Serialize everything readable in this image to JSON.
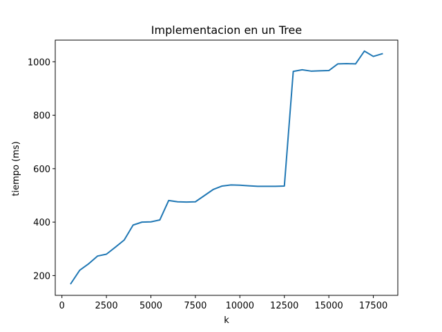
{
  "chart_data": {
    "type": "line",
    "title": "Implementacion en un Tree",
    "xlabel": "k",
    "ylabel": "tiempo (ms)",
    "xlim": [
      -375,
      18875
    ],
    "ylim": [
      126,
      1081
    ],
    "xticks": [
      0,
      2500,
      5000,
      7500,
      10000,
      12500,
      15000,
      17500
    ],
    "xtick_labels": [
      "0",
      "2500",
      "5000",
      "7500",
      "10000",
      "12500",
      "15000",
      "17500"
    ],
    "yticks": [
      200,
      400,
      600,
      800,
      1000
    ],
    "ytick_labels": [
      "200",
      "400",
      "600",
      "800",
      "1000"
    ],
    "grid": false,
    "legend": "none",
    "line_color": "#1f77b4",
    "series": [
      {
        "x": [
          500,
          1000,
          1500,
          2000,
          2500,
          3000,
          3500,
          4000,
          4500,
          5000,
          5500,
          6000,
          6500,
          7000,
          7500,
          8000,
          8500,
          9000,
          9500,
          10000,
          10500,
          11000,
          11500,
          12000,
          12500,
          13000,
          13500,
          14000,
          14500,
          15000,
          15500,
          16000,
          16500,
          17000,
          17500,
          18000
        ],
        "values": [
          170,
          220,
          244,
          273,
          280,
          306,
          333,
          389,
          400,
          401,
          408,
          481,
          476,
          475,
          476,
          499,
          522,
          535,
          539,
          538,
          536,
          534,
          534,
          534,
          535,
          964,
          970,
          965,
          966,
          967,
          992,
          993,
          992,
          1040,
          1020,
          1030
        ]
      }
    ]
  }
}
